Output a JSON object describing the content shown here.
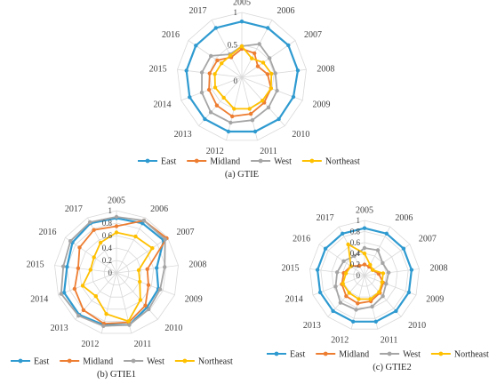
{
  "series_colors": {
    "East": "#2E9AD0",
    "Midland": "#ED7D31",
    "West": "#A5A5A5",
    "Northeast": "#FFC000"
  },
  "chart_data": [
    {
      "type": "radar",
      "caption": "(a) GTIE",
      "categories": [
        "2005",
        "2006",
        "2007",
        "2008",
        "2009",
        "2010",
        "2011",
        "2012",
        "2013",
        "2014",
        "2015",
        "2016",
        "2017"
      ],
      "ticks": [
        "0",
        "0.5",
        "1"
      ],
      "rlim": [
        0,
        1
      ],
      "grid": true,
      "legend_position": "bottom",
      "series": [
        {
          "name": "East",
          "values": [
            0.86,
            0.86,
            0.87,
            0.87,
            0.85,
            0.86,
            0.86,
            0.86,
            0.86,
            0.86,
            0.86,
            0.86,
            0.86
          ]
        },
        {
          "name": "Midland",
          "values": [
            0.44,
            0.42,
            0.3,
            0.4,
            0.48,
            0.52,
            0.58,
            0.62,
            0.58,
            0.54,
            0.5,
            0.46,
            0.35
          ]
        },
        {
          "name": "West",
          "values": [
            0.48,
            0.58,
            0.52,
            0.52,
            0.58,
            0.62,
            0.68,
            0.72,
            0.72,
            0.66,
            0.62,
            0.58,
            0.4
          ]
        },
        {
          "name": "Northeast",
          "values": [
            0.48,
            0.33,
            0.4,
            0.46,
            0.48,
            0.48,
            0.5,
            0.5,
            0.42,
            0.44,
            0.42,
            0.38,
            0.38
          ]
        }
      ]
    },
    {
      "type": "radar",
      "caption": "(b) GTIE1",
      "categories": [
        "2005",
        "2006",
        "2007",
        "2008",
        "2009",
        "2010",
        "2011",
        "2012",
        "2013",
        "2014",
        "2015",
        "2016",
        "2017"
      ],
      "ticks": [
        "0",
        "0.2",
        "0.4",
        "0.6",
        "0.8",
        "1"
      ],
      "rlim": [
        0,
        1
      ],
      "grid": true,
      "legend_position": "bottom",
      "series": [
        {
          "name": "East",
          "values": [
            0.88,
            0.9,
            0.92,
            0.65,
            0.72,
            0.74,
            0.86,
            0.86,
            0.9,
            0.9,
            0.8,
            0.86,
            0.9
          ]
        },
        {
          "name": "Midland",
          "values": [
            0.75,
            0.95,
            0.98,
            0.5,
            0.55,
            0.7,
            0.82,
            0.84,
            0.8,
            0.72,
            0.62,
            0.72,
            0.78
          ]
        },
        {
          "name": "West",
          "values": [
            0.9,
            0.95,
            0.95,
            0.78,
            0.75,
            0.78,
            0.86,
            0.88,
            0.92,
            0.95,
            0.86,
            0.9,
            0.92
          ]
        },
        {
          "name": "Northeast",
          "values": [
            0.65,
            0.66,
            0.7,
            0.36,
            0.4,
            0.58,
            0.8,
            0.68,
            0.5,
            0.58,
            0.42,
            0.44,
            0.55
          ]
        }
      ]
    },
    {
      "type": "radar",
      "caption": "(c) GTIE2",
      "categories": [
        "2005",
        "2006",
        "2007",
        "2008",
        "2009",
        "2010",
        "2011",
        "2012",
        "2013",
        "2014",
        "2015",
        "2016",
        "2017"
      ],
      "ticks": [
        "0",
        "0.2",
        "0.4",
        "0.6",
        "0.8",
        "1"
      ],
      "rlim": [
        0,
        1
      ],
      "grid": true,
      "legend_position": "bottom",
      "series": [
        {
          "name": "East",
          "values": [
            0.86,
            0.86,
            0.86,
            0.86,
            0.86,
            0.86,
            0.86,
            0.86,
            0.86,
            0.86,
            0.86,
            0.86,
            0.86
          ]
        },
        {
          "name": "Midland",
          "values": [
            0.2,
            0.18,
            0.18,
            0.26,
            0.36,
            0.42,
            0.48,
            0.52,
            0.5,
            0.44,
            0.38,
            0.3,
            0.2
          ]
        },
        {
          "name": "West",
          "values": [
            0.5,
            0.52,
            0.4,
            0.44,
            0.42,
            0.5,
            0.58,
            0.64,
            0.66,
            0.56,
            0.5,
            0.46,
            0.4
          ]
        },
        {
          "name": "Northeast",
          "values": [
            0.4,
            0.22,
            0.18,
            0.34,
            0.34,
            0.4,
            0.44,
            0.44,
            0.42,
            0.42,
            0.34,
            0.3,
            0.64
          ]
        }
      ]
    }
  ]
}
